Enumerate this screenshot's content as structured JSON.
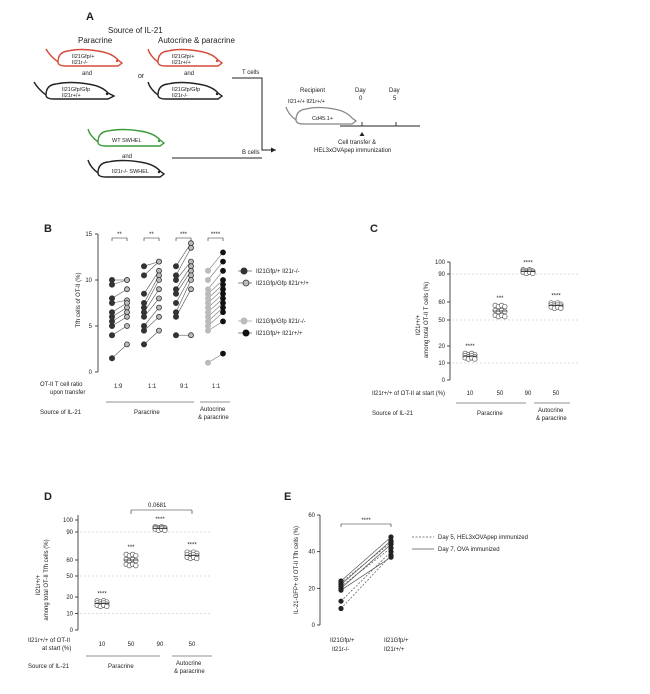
{
  "panels": {
    "A": {
      "label": "A",
      "source_title": "Source of IL-21",
      "paracrine_title": "Paracrine",
      "autocrine_title": "Autocrine & paracrine",
      "or_text": "or",
      "and_text": "and",
      "mice": {
        "para_top": [
          "Il21Gfp/+",
          "Il21r-/-"
        ],
        "para_bottom": [
          "Il21Gfp/Gfp",
          "Il21r+/+"
        ],
        "auto_top": [
          "Il21Gfp/+",
          "Il21r+/+"
        ],
        "auto_bottom": [
          "Il21Gfp/Gfp",
          "Il21r-/-"
        ],
        "bcell_top": [
          "WT SWHEL"
        ],
        "bcell_bottom": [
          "Il21r-/- SWHEL"
        ]
      },
      "t_cells": "T cells",
      "b_cells": "B cells",
      "recipient": "Recipient",
      "recipient_genotype": "Il21+/+ Il21r+/+",
      "recipient_marker": "Cd45.1+",
      "day_label": "Day",
      "day0": "0",
      "day5": "5",
      "transfer_line1": "Cell transfer &",
      "transfer_line2": "HEL3xOVApep immunization"
    },
    "B": {
      "label": "B",
      "ylabel": "Tfh cells of OT-II (%)",
      "yticks": [
        "0",
        "5",
        "10",
        "15"
      ],
      "ratio_label_1": "OT-II T cell ratio",
      "ratio_label_2": "upon transfer",
      "ratios": [
        "1:9",
        "1:1",
        "9:1",
        "1:1"
      ],
      "source_label": "Source of IL-21",
      "group_paracrine": "Paracrine",
      "group_auto_1": "Autocrine",
      "group_auto_2": "& paracrine",
      "sig": [
        "**",
        "**",
        "***",
        "****"
      ],
      "legend": [
        "Il21Gfp/+ Il21r-/-",
        "Il21Gfp/Gfp Il21r+/+",
        "Il21Gfp/Gfp Il21r-/-",
        "Il21Gfp/+ Il21r+/+"
      ]
    },
    "C": {
      "label": "C",
      "ylabel_1": "Il21r+/+",
      "ylabel_2": "among total OT-II T cells (%)",
      "yticks": [
        "0",
        "10",
        "20",
        "50",
        "60",
        "90",
        "100"
      ],
      "xrow_label": "Il21r+/+ of OT-II at start (%)",
      "xvals": [
        "10",
        "50",
        "90",
        "50"
      ],
      "sig": [
        "****",
        "***",
        "****",
        "****"
      ],
      "source_label": "Source of IL-21",
      "group_paracrine": "Paracrine",
      "group_auto_1": "Autocrine",
      "group_auto_2": "& paracrine"
    },
    "D": {
      "label": "D",
      "ylabel_1": "Il21r+/+",
      "ylabel_2": "among total OT-II Tfh cells (%)",
      "yticks": [
        "0",
        "10",
        "20",
        "50",
        "60",
        "90",
        "100"
      ],
      "pvalue": "0.0681",
      "xrow_label_1": "Il21r+/+ of OT-II",
      "xrow_label_2": "at start (%)",
      "xvals": [
        "10",
        "50",
        "90",
        "50"
      ],
      "sig": [
        "****",
        "***",
        "****",
        "****"
      ],
      "source_label": "Source of IL-21",
      "group_paracrine": "Paracrine",
      "group_auto_1": "Autocrine",
      "group_auto_2": "& paracrine"
    },
    "E": {
      "label": "E",
      "ylabel": "IL-21-GFP+ of OT-II Tfh cells (%)",
      "yticks": [
        "0",
        "20",
        "40",
        "60"
      ],
      "sig": "****",
      "x1_line1": "Il21Gfp/+",
      "x1_line2": "Il21r-/-",
      "x2_line1": "Il21Gfp/+",
      "x2_line2": "Il21r+/+",
      "legend_dashed": "Day 5, HEL3xOVApep immunized",
      "legend_solid": "Day 7, OVA immunized"
    }
  },
  "chart_data": [
    {
      "panel": "B",
      "type": "scatter",
      "ylabel": "Tfh cells of OT-II (%)",
      "ylim": [
        0,
        15
      ],
      "groups": [
        {
          "ratio": "1:9",
          "sig": "**",
          "left": [
            10,
            9.5,
            8,
            7.5,
            6.5,
            6,
            5.5,
            5,
            4,
            1.5
          ],
          "right": [
            10,
            10,
            9,
            7.8,
            7.5,
            7,
            6.5,
            6,
            5,
            3
          ]
        },
        {
          "ratio": "1:1",
          "sig": "**",
          "left": [
            11.5,
            10.5,
            8.5,
            7.5,
            7,
            6.5,
            6,
            5,
            4.5,
            3
          ],
          "right": [
            12,
            12,
            11,
            10.5,
            10,
            9,
            8,
            7,
            6,
            4.5
          ]
        },
        {
          "ratio": "9:1",
          "sig": "***",
          "left": [
            11.5,
            10.5,
            10,
            9,
            8.5,
            7.5,
            6.5,
            6,
            4
          ],
          "right": [
            14,
            13.5,
            12,
            11.5,
            11,
            10.5,
            10,
            9,
            4
          ]
        },
        {
          "ratio": "1:1",
          "sig": "****",
          "left": [
            11,
            10,
            9,
            8.5,
            8,
            7.5,
            7,
            6.5,
            6,
            5.5,
            5,
            4.5,
            1
          ],
          "right": [
            13,
            12,
            11,
            10,
            9.5,
            9,
            8.5,
            8,
            7.5,
            7,
            6.5,
            5.5,
            2
          ]
        }
      ]
    },
    {
      "panel": "C",
      "type": "scatter",
      "ylim": [
        0,
        100
      ],
      "xvals": [
        10,
        50,
        90,
        50
      ],
      "means": [
        14,
        55,
        92,
        58
      ],
      "sig": [
        "****",
        "***",
        "****",
        "****"
      ]
    },
    {
      "panel": "D",
      "type": "scatter",
      "ylim": [
        0,
        100
      ],
      "xvals": [
        10,
        50,
        90,
        50
      ],
      "means": [
        16,
        60,
        93,
        65
      ],
      "sig": [
        "****",
        "***",
        "****",
        "****"
      ],
      "pvalue": "0.0681"
    },
    {
      "panel": "E",
      "type": "line",
      "ylim": [
        0,
        60
      ],
      "pairs_dashed": [
        [
          9,
          38
        ],
        [
          13,
          40
        ],
        [
          21,
          42
        ],
        [
          23,
          45
        ]
      ],
      "pairs_solid": [
        [
          19,
          37
        ],
        [
          20,
          44
        ],
        [
          22,
          46
        ],
        [
          24,
          48
        ]
      ]
    }
  ]
}
